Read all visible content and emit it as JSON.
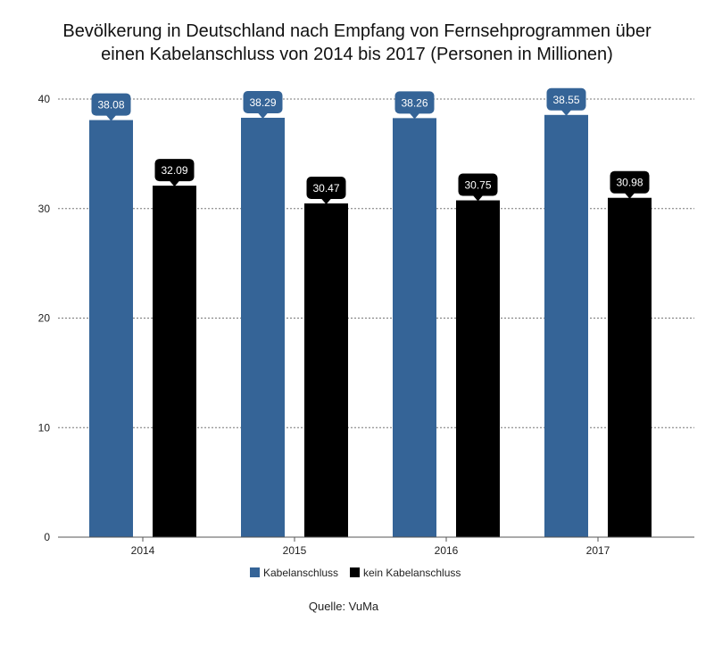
{
  "chart_data": {
    "type": "bar",
    "title_lines": [
      "Bevölkerung in Deutschland nach Empfang von Fernsehprogrammen über",
      "einen Kabelanschluss von 2014 bis 2017 (Personen in Millionen)"
    ],
    "categories": [
      "2014",
      "2015",
      "2016",
      "2017"
    ],
    "series": [
      {
        "name": "Kabelanschluss",
        "values": [
          38.08,
          38.29,
          38.26,
          38.55
        ],
        "color": "#356497"
      },
      {
        "name": "kein Kabelanschluss",
        "values": [
          32.09,
          30.47,
          30.75,
          30.98
        ],
        "color": "#000000"
      }
    ],
    "data_labels": [
      [
        "38.08",
        "38.29",
        "38.26",
        "38.55"
      ],
      [
        "32.09",
        "30.47",
        "30.75",
        "30.98"
      ]
    ],
    "yticks": [
      "0",
      "10",
      "20",
      "30",
      "40"
    ],
    "ylim": [
      0,
      40
    ],
    "grid": true,
    "legend_position": "bottom-center",
    "source": "Quelle: VuMa"
  }
}
